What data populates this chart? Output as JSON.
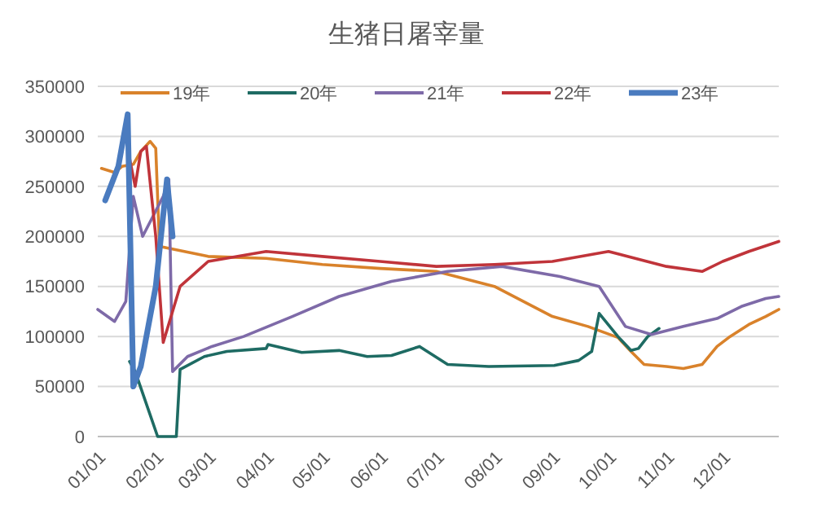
{
  "chart_data": {
    "type": "line",
    "title": "生猪日屠宰量",
    "xlim": [
      "--01-01",
      "--12-31"
    ],
    "xticks": [
      {
        "value": "--01-01",
        "label": "01/01"
      },
      {
        "value": "--02-01",
        "label": "02/01"
      },
      {
        "value": "--03-01",
        "label": "03/01"
      },
      {
        "value": "--04-01",
        "label": "04/01"
      },
      {
        "value": "--05-01",
        "label": "05/01"
      },
      {
        "value": "--06-01",
        "label": "06/01"
      },
      {
        "value": "--07-01",
        "label": "07/01"
      },
      {
        "value": "--08-01",
        "label": "08/01"
      },
      {
        "value": "--09-01",
        "label": "09/01"
      },
      {
        "value": "--10-01",
        "label": "10/01"
      },
      {
        "value": "--11-01",
        "label": "11/01"
      },
      {
        "value": "--12-01",
        "label": "12/01"
      }
    ],
    "ylim": [
      0,
      350000
    ],
    "yticks": [
      0,
      50000,
      100000,
      150000,
      200000,
      250000,
      300000,
      350000
    ],
    "grid": "y",
    "legend": "top",
    "line_style": "solid",
    "marker": "none",
    "series": [
      {
        "name": "19年",
        "color": "#d9822b",
        "x": [
          "--01-03",
          "--01-10",
          "--01-14",
          "--01-20",
          "--01-24",
          "--01-29",
          "--02-01",
          "--02-03",
          "--03-01",
          "--04-01",
          "--05-01",
          "--06-01",
          "--07-01",
          "--08-01",
          "--09-01",
          "--09-20",
          "--10-06",
          "--10-13",
          "--10-20",
          "--11-01",
          "--11-10",
          "--11-20",
          "--11-28",
          "--12-05",
          "--12-15",
          "--12-24",
          "--12-31"
        ],
        "values": [
          268000,
          264000,
          270000,
          272000,
          285000,
          295000,
          288000,
          190000,
          180000,
          178000,
          172000,
          168000,
          165000,
          150000,
          120000,
          110000,
          99000,
          85000,
          72000,
          70000,
          68000,
          72000,
          90000,
          100000,
          112000,
          120000,
          127000
        ]
      },
      {
        "name": "20年",
        "color": "#1e6b63",
        "x": [
          "--01-18",
          "--01-21",
          "--02-02",
          "--02-12",
          "--02-14",
          "--02-27",
          "--03-11",
          "--04-01",
          "--04-02",
          "--04-20",
          "--05-10",
          "--05-25",
          "--06-07",
          "--06-22",
          "--07-07",
          "--07-29",
          "--09-02",
          "--09-15",
          "--09-22",
          "--09-26",
          "--10-06",
          "--10-13",
          "--10-17",
          "--10-22",
          "--10-28"
        ],
        "values": [
          75000,
          65000,
          0,
          0,
          67000,
          80000,
          85000,
          88000,
          92000,
          84000,
          86000,
          80000,
          81000,
          90000,
          72000,
          70000,
          71000,
          76000,
          85000,
          123000,
          100000,
          86000,
          88000,
          100000,
          108000
        ]
      },
      {
        "name": "21年",
        "color": "#7e6aa8",
        "x": [
          "--01-01",
          "--01-10",
          "--01-16",
          "--01-20",
          "--01-25",
          "--02-05",
          "--02-08",
          "--02-10",
          "--02-18",
          "--03-03",
          "--03-20",
          "--04-15",
          "--05-10",
          "--06-07",
          "--07-07",
          "--08-05",
          "--09-05",
          "--09-26",
          "--10-10",
          "--10-24",
          "--11-10",
          "--11-28",
          "--12-11",
          "--12-24",
          "--12-31"
        ],
        "values": [
          127000,
          115000,
          135000,
          240000,
          200000,
          240000,
          257000,
          65000,
          80000,
          90000,
          100000,
          120000,
          140000,
          155000,
          165000,
          170000,
          160000,
          150000,
          110000,
          102000,
          110000,
          118000,
          130000,
          138000,
          140000
        ]
      },
      {
        "name": "22年",
        "color": "#c0343a",
        "x": [
          "--01-18",
          "--01-21",
          "--01-24",
          "--01-27",
          "--02-01",
          "--02-05",
          "--02-14",
          "--03-01",
          "--04-01",
          "--05-01",
          "--06-01",
          "--07-01",
          "--08-01",
          "--09-01",
          "--10-01",
          "--11-01",
          "--11-20",
          "--12-01",
          "--12-15",
          "--12-31"
        ],
        "values": [
          278000,
          250000,
          285000,
          290000,
          200000,
          94000,
          150000,
          175000,
          185000,
          180000,
          175000,
          170000,
          172000,
          175000,
          185000,
          170000,
          165000,
          175000,
          185000,
          195000
        ]
      },
      {
        "name": "23年",
        "color": "#4a7bbf",
        "x": [
          "--01-05",
          "--01-12",
          "--01-17",
          "--01-20",
          "--01-24",
          "--02-01",
          "--02-07",
          "--02-10"
        ],
        "values": [
          236000,
          270000,
          322000,
          50000,
          70000,
          150000,
          257000,
          200000
        ]
      }
    ]
  }
}
